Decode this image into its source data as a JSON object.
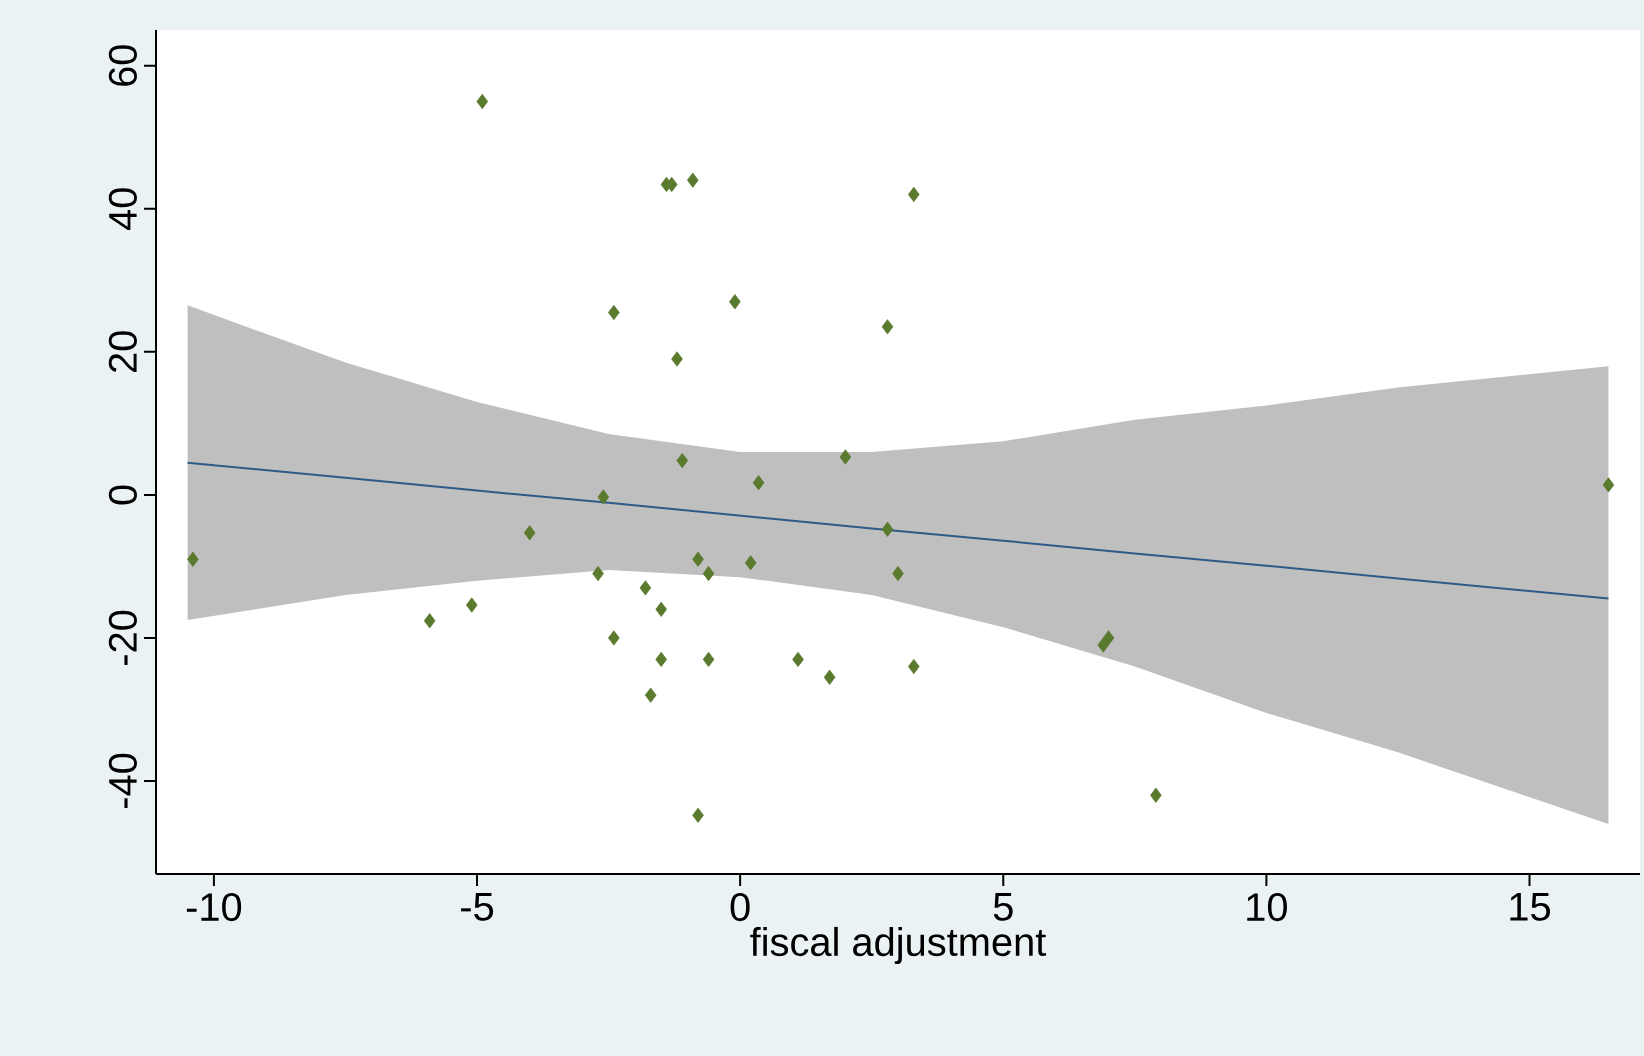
{
  "chart_data": {
    "type": "scatter",
    "xlabel": "fiscal adjustment",
    "xlim": [
      -11.1,
      17.1
    ],
    "ylim": [
      -53,
      65
    ],
    "xticks": [
      -10,
      -5,
      0,
      5,
      10,
      15
    ],
    "yticks": [
      -40,
      -20,
      0,
      20,
      40,
      60
    ],
    "grid": false,
    "series": [
      {
        "type": "line",
        "color": "#2e5a87",
        "x": [
          -10.5,
          -7.5,
          -5,
          -2.5,
          0,
          2.5,
          5,
          7.5,
          10,
          12.5,
          16.5
        ],
        "values": [
          4.5,
          2.4,
          0.6,
          -1.1,
          -2.9,
          -4.7,
          -6.4,
          -8.2,
          -9.9,
          -11.7,
          -14.5
        ],
        "lower": [
          -17.5,
          -14,
          -12,
          -10.5,
          -11.5,
          -14,
          -18.5,
          -24,
          -30.5,
          -36,
          -46
        ],
        "upper": [
          26.5,
          18.5,
          13,
          8.5,
          6,
          6,
          7.5,
          10.5,
          12.5,
          15,
          18
        ]
      },
      {
        "marker": "diamond",
        "color": "#5a7a2e",
        "x": [
          -10.4,
          -4.9,
          -5.9,
          -5.1,
          -4.0,
          -2.6,
          -2.7,
          -2.4,
          -2.4,
          -1.8,
          -1.7,
          -1.5,
          -1.5,
          -1.4,
          -1.3,
          -0.9,
          -1.2,
          -1.1,
          -0.8,
          -0.6,
          -0.6,
          -0.8,
          -0.1,
          0.2,
          0.35,
          1.1,
          1.7,
          2.0,
          2.8,
          2.8,
          3.0,
          3.3,
          3.3,
          6.9,
          7.0,
          7.9,
          16.5
        ],
        "values": [
          -9,
          55,
          -17.6,
          -15.4,
          -5.3,
          -0.3,
          -11,
          -20,
          25.5,
          -13,
          -28,
          -16,
          -23,
          43.4,
          43.4,
          44,
          19,
          4.8,
          -9,
          -11,
          -23,
          -44.8,
          27,
          -9.5,
          1.7,
          -23,
          -25.5,
          5.3,
          23.5,
          -4.8,
          -11,
          42,
          -24,
          -21,
          -20,
          -42,
          1.4
        ]
      }
    ]
  }
}
